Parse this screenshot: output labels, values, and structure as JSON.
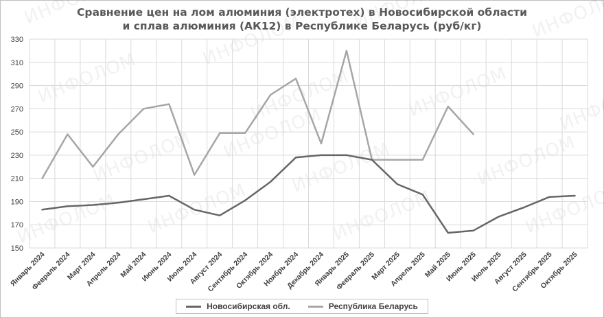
{
  "page": {
    "title_line1": "Сравнение цен на лом алюминия (электротех) в Новосибирской области",
    "title_line2": "и сплав алюминия (АК12) в Республике Беларусь (руб/кг)",
    "watermark": "ИНФОЛОМ"
  },
  "chart_data": {
    "type": "line",
    "title": "Сравнение цен на лом алюминия (электротех) в Новосибирской области и сплав алюминия (АК12) в Республике Беларусь (руб/кг)",
    "xlabel": "",
    "ylabel": "",
    "categories": [
      "Январь 2024",
      "Февраль 2024",
      "Март 2024",
      "Апрель 2024",
      "Май 2024",
      "Июнь 2024",
      "Июль 2024",
      "Август 2024",
      "Сентябрь 2024",
      "Октябрь 2024",
      "Ноябрь 2024",
      "Декабрь 2024",
      "Январь 2025",
      "Февраль 2025",
      "Март 2025",
      "Апрель 2025",
      "Май 2025",
      "Июнь 2025",
      "Июль 2025",
      "Август 2025",
      "Сентябрь 2025",
      "Октябрь 2025"
    ],
    "ylim": [
      150,
      330
    ],
    "yticks": [
      150,
      170,
      190,
      210,
      230,
      250,
      270,
      290,
      310,
      330
    ],
    "grid": true,
    "legend_position": "bottom",
    "series": [
      {
        "name": "Новосибирская обл.",
        "color": "#666666",
        "values": [
          183,
          186,
          187,
          189,
          192,
          195,
          183,
          178,
          191,
          207,
          228,
          230,
          230,
          226,
          205,
          196,
          163,
          165,
          177,
          185,
          194,
          195
        ]
      },
      {
        "name": "Республика Беларусь",
        "color": "#a6a6a6",
        "values": [
          210,
          248,
          220,
          248,
          270,
          274,
          213,
          249,
          249,
          282,
          296,
          240,
          320,
          226,
          226,
          226,
          272,
          248,
          null,
          null,
          null,
          null
        ]
      }
    ]
  }
}
